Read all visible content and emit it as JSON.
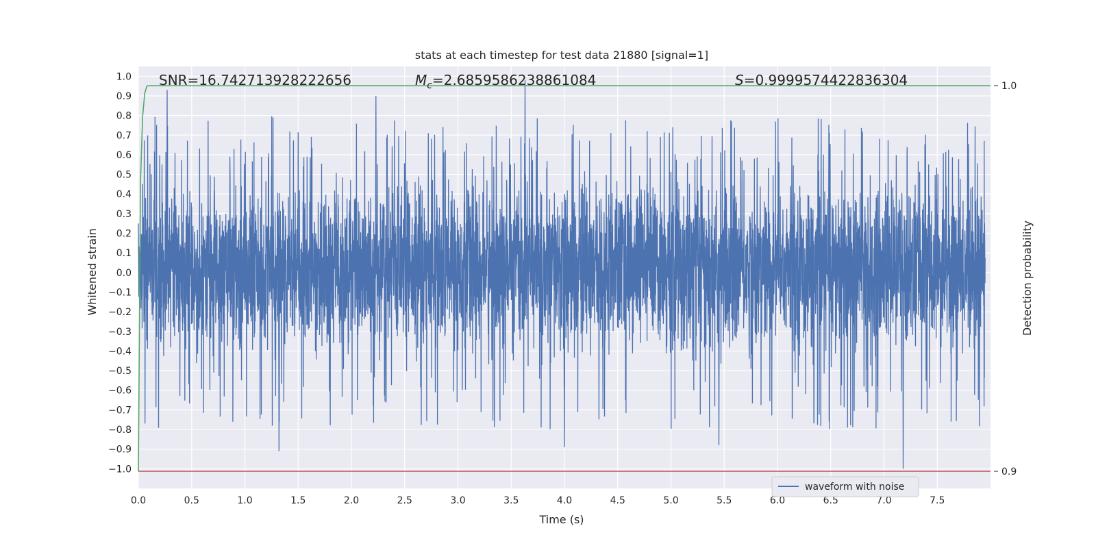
{
  "chart_data": {
    "type": "line",
    "title": "stats at each timestep for test data 21880 [signal=1]",
    "xlabel": "Time (s)",
    "ylabel": "Whitened strain",
    "ylabel_right": "Detection probability",
    "xlim": [
      0.0,
      8.0
    ],
    "ylim": [
      -1.1,
      1.05
    ],
    "ylim_right": [
      0.9,
      1.0
    ],
    "x_ticks": [
      "0.0",
      "0.5",
      "1.0",
      "1.5",
      "2.0",
      "2.5",
      "3.0",
      "3.5",
      "4.0",
      "4.5",
      "5.0",
      "5.5",
      "6.0",
      "6.5",
      "7.0",
      "7.5"
    ],
    "x_tick_values": [
      0.0,
      0.5,
      1.0,
      1.5,
      2.0,
      2.5,
      3.0,
      3.5,
      4.0,
      4.5,
      5.0,
      5.5,
      6.0,
      6.5,
      7.0,
      7.5
    ],
    "y_ticks": [
      "1.0",
      "0.9",
      "0.8",
      "0.7",
      "0.6",
      "0.5",
      "0.4",
      "0.3",
      "0.2",
      "0.1",
      "0.0",
      "−0.1",
      "−0.2",
      "−0.3",
      "−0.4",
      "−0.5",
      "−0.6",
      "−0.7",
      "−0.8",
      "−0.9",
      "−1.0"
    ],
    "y_tick_values": [
      1.0,
      0.9,
      0.8,
      0.7,
      0.6,
      0.5,
      0.4,
      0.3,
      0.2,
      0.1,
      0.0,
      -0.1,
      -0.2,
      -0.3,
      -0.4,
      -0.5,
      -0.6,
      -0.7,
      -0.8,
      -0.9,
      -1.0
    ],
    "y_ticks_right": [
      "1.0",
      "0.9"
    ],
    "y_tick_values_right": [
      1.0,
      0.9
    ],
    "grid": true,
    "annotations": {
      "snr": "SNR=16.742713928222656",
      "mc_symbol": "M",
      "mc_sub": "c",
      "mc_value": "=2.6859586238861084",
      "s_symbol": "S",
      "s_value": "=0.9999574422836304"
    },
    "series": [
      {
        "name": "waveform with noise",
        "color": "#4c72b0",
        "style": "dense noise",
        "x_range": [
          0.0,
          8.0
        ],
        "envelope_upper_typical": 0.5,
        "envelope_lower_typical": -0.45,
        "peaks": [
          {
            "x": 0.27,
            "y": 0.93
          },
          {
            "x": 2.23,
            "y": 0.9
          },
          {
            "x": 3.63,
            "y": 0.98
          },
          {
            "x": 7.18,
            "y": -1.0
          },
          {
            "x": 1.32,
            "y": -0.91
          },
          {
            "x": 4.0,
            "y": -0.89
          },
          {
            "x": 5.45,
            "y": -0.88
          }
        ]
      },
      {
        "color": "#55a868",
        "axis": "right",
        "x": [
          0.0,
          0.02,
          0.04,
          0.06,
          0.08,
          0.1,
          8.0
        ],
        "y": [
          0.9,
          0.975,
          0.992,
          0.998,
          0.9999,
          0.99996,
          0.99996
        ]
      },
      {
        "color": "#c44e52",
        "axis": "right",
        "x": [
          0.0,
          8.0
        ],
        "y": [
          0.9,
          0.9
        ]
      }
    ],
    "legend": {
      "entries": [
        "waveform with noise"
      ],
      "placement": "lower-right"
    }
  }
}
